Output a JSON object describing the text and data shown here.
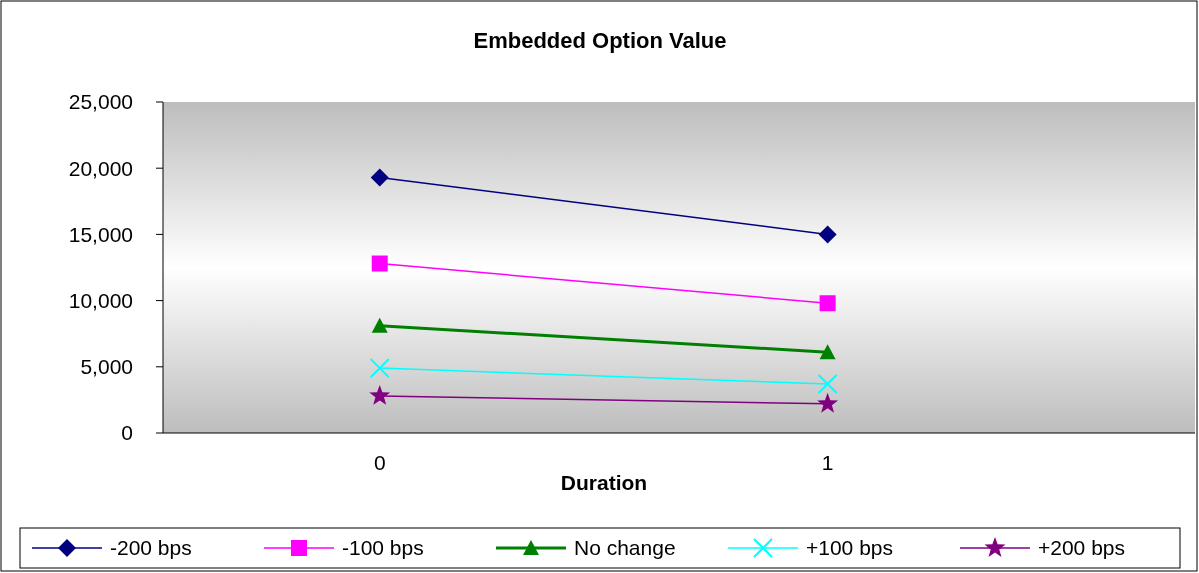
{
  "chart_data": {
    "type": "line",
    "title": "Embedded Option Value",
    "xlabel": "Duration",
    "categories": [
      "0",
      "1"
    ],
    "series": [
      {
        "name": "-200 bps",
        "color": "#000080",
        "marker": "diamond",
        "values": [
          19300,
          15000
        ]
      },
      {
        "name": "-100 bps",
        "color": "#ff00ff",
        "marker": "square",
        "values": [
          12800,
          9800
        ]
      },
      {
        "name": "No change",
        "color": "#008000",
        "marker": "triangle",
        "values": [
          8100,
          6100
        ]
      },
      {
        "name": "+100 bps",
        "color": "#00ffff",
        "marker": "cross",
        "values": [
          4900,
          3700
        ]
      },
      {
        "name": "+200 bps",
        "color": "#800080",
        "marker": "star",
        "values": [
          2800,
          2200
        ]
      }
    ],
    "ylim": [
      0,
      25000
    ],
    "yticks": [
      {
        "value": 0,
        "label": "0"
      },
      {
        "value": 5000,
        "label": "5,000"
      },
      {
        "value": 10000,
        "label": "10,000"
      },
      {
        "value": 15000,
        "label": "15,000"
      },
      {
        "value": 20000,
        "label": "20,000"
      },
      {
        "value": 25000,
        "label": "25,000"
      }
    ],
    "grid": false,
    "legend": "bottom"
  }
}
